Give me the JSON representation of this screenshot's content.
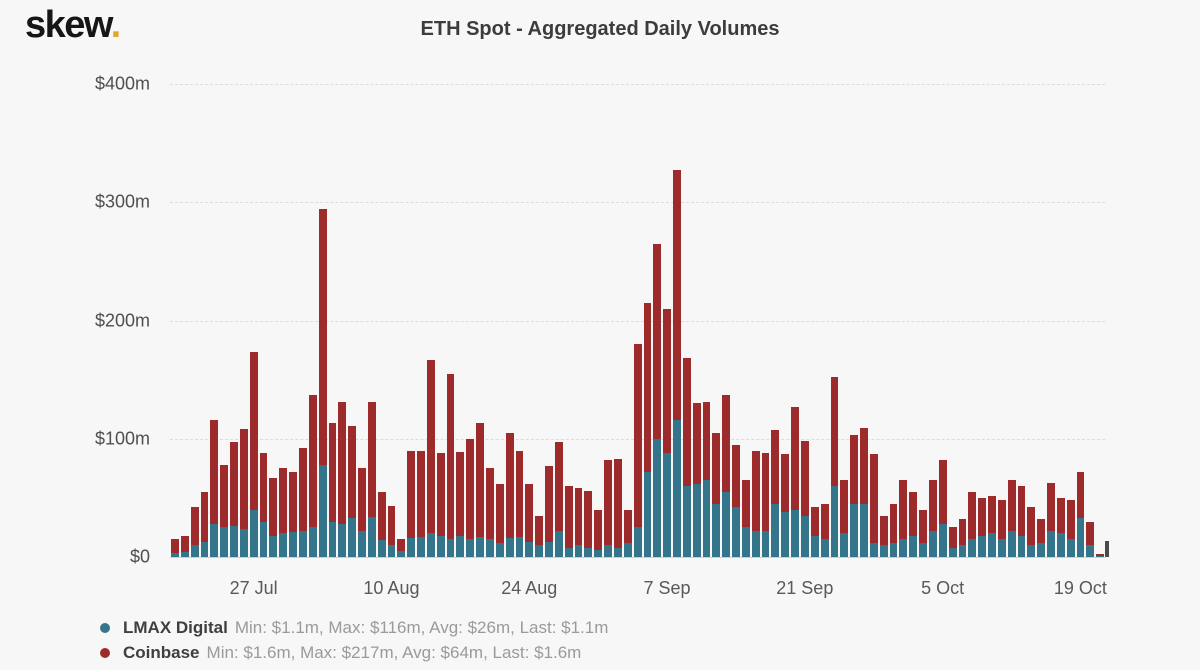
{
  "header": {
    "logo_text": "skew",
    "logo_dot": ".",
    "title": "ETH Spot - Aggregated Daily Volumes"
  },
  "colors": {
    "background": "#f7f7f7",
    "logo_dot": "#e4a62f",
    "lmax": "#35758b",
    "coinbase": "#9e2b2b"
  },
  "chart_data": {
    "type": "bar",
    "stacked": true,
    "title": "ETH Spot - Aggregated Daily Volumes",
    "xlabel": "",
    "ylabel": "",
    "ylim": [
      0,
      400
    ],
    "grid": "horizontal-dashed",
    "legend_position": "bottom-left",
    "yticks": [
      {
        "label": "$0",
        "value": 0
      },
      {
        "label": "$100m",
        "value": 100
      },
      {
        "label": "$200m",
        "value": 200
      },
      {
        "label": "$300m",
        "value": 300
      },
      {
        "label": "$400m",
        "value": 400
      }
    ],
    "xticks": [
      {
        "label": "27 Jul",
        "index": 8
      },
      {
        "label": "10 Aug",
        "index": 22
      },
      {
        "label": "24 Aug",
        "index": 36
      },
      {
        "label": "7 Sep",
        "index": 50
      },
      {
        "label": "21 Sep",
        "index": 64
      },
      {
        "label": "5 Oct",
        "index": 78
      },
      {
        "label": "19 Oct",
        "index": 92
      }
    ],
    "dates": [
      "19 Jul",
      "20 Jul",
      "21 Jul",
      "22 Jul",
      "23 Jul",
      "24 Jul",
      "25 Jul",
      "26 Jul",
      "27 Jul",
      "28 Jul",
      "29 Jul",
      "30 Jul",
      "31 Jul",
      "1 Aug",
      "2 Aug",
      "3 Aug",
      "4 Aug",
      "5 Aug",
      "6 Aug",
      "7 Aug",
      "8 Aug",
      "9 Aug",
      "10 Aug",
      "11 Aug",
      "12 Aug",
      "13 Aug",
      "14 Aug",
      "15 Aug",
      "16 Aug",
      "17 Aug",
      "18 Aug",
      "19 Aug",
      "20 Aug",
      "21 Aug",
      "22 Aug",
      "23 Aug",
      "24 Aug",
      "25 Aug",
      "26 Aug",
      "27 Aug",
      "28 Aug",
      "29 Aug",
      "30 Aug",
      "31 Aug",
      "1 Sep",
      "2 Sep",
      "3 Sep",
      "4 Sep",
      "5 Sep",
      "6 Sep",
      "7 Sep",
      "8 Sep",
      "9 Sep",
      "10 Sep",
      "11 Sep",
      "12 Sep",
      "13 Sep",
      "14 Sep",
      "15 Sep",
      "16 Sep",
      "17 Sep",
      "18 Sep",
      "19 Sep",
      "20 Sep",
      "21 Sep",
      "22 Sep",
      "23 Sep",
      "24 Sep",
      "25 Sep",
      "26 Sep",
      "27 Sep",
      "28 Sep",
      "29 Sep",
      "30 Sep",
      "1 Oct",
      "2 Oct",
      "3 Oct",
      "4 Oct",
      "5 Oct",
      "6 Oct",
      "7 Oct",
      "8 Oct",
      "9 Oct",
      "10 Oct",
      "11 Oct",
      "12 Oct",
      "13 Oct",
      "14 Oct",
      "15 Oct",
      "16 Oct",
      "17 Oct",
      "18 Oct",
      "19 Oct",
      "20 Oct",
      "21 Oct"
    ],
    "series": [
      {
        "name": "LMAX Digital",
        "color": "#35758b",
        "values": [
          3,
          4,
          10,
          13,
          28,
          25,
          26,
          24,
          40,
          30,
          18,
          20,
          21,
          22,
          25,
          78,
          30,
          28,
          33,
          22,
          34,
          14,
          10,
          5,
          16,
          17,
          20,
          18,
          15,
          18,
          15,
          17,
          15,
          12,
          16,
          17,
          13,
          10,
          13,
          22,
          8,
          10,
          8,
          6,
          10,
          8,
          12,
          25,
          72,
          100,
          88,
          116,
          60,
          62,
          65,
          45,
          55,
          42,
          25,
          22,
          22,
          45,
          38,
          40,
          35,
          18,
          15,
          60,
          20,
          45,
          45,
          12,
          10,
          12,
          15,
          18,
          12,
          22,
          28,
          8,
          10,
          15,
          18,
          20,
          15,
          22,
          18,
          10,
          12,
          22,
          20,
          15,
          33,
          10,
          1.1
        ]
      },
      {
        "name": "Coinbase",
        "color": "#9e2b2b",
        "values": [
          12,
          14,
          32,
          42,
          88,
          53,
          71,
          84,
          133,
          58,
          49,
          55,
          51,
          70,
          112,
          216,
          83,
          103,
          78,
          53,
          97,
          41,
          33,
          10,
          74,
          73,
          147,
          70,
          140,
          71,
          85,
          96,
          60,
          50,
          89,
          73,
          49,
          25,
          64,
          75,
          52,
          48,
          48,
          34,
          72,
          75,
          28,
          155,
          143,
          165,
          122,
          211,
          108,
          68,
          66,
          60,
          82,
          53,
          40,
          68,
          66,
          62,
          49,
          87,
          63,
          24,
          30,
          92,
          45,
          58,
          64,
          75,
          25,
          33,
          50,
          37,
          28,
          43,
          54,
          17,
          22,
          40,
          32,
          32,
          33,
          43,
          42,
          32,
          20,
          41,
          30,
          33,
          39,
          20,
          1.6
        ]
      }
    ],
    "legend": [
      {
        "name": "LMAX Digital",
        "stats": "Min: $1.1m, Max: $116m, Avg: $26m, Last: $1.1m"
      },
      {
        "name": "Coinbase",
        "stats": "Min: $1.6m, Max: $217m, Avg: $64m, Last: $1.6m"
      }
    ]
  }
}
